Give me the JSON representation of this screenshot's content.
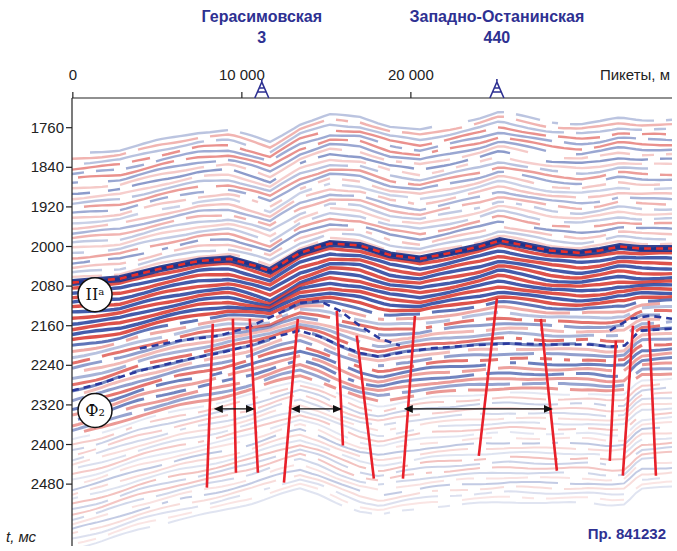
{
  "chart_data": {
    "type": "seismic_section",
    "x_label": "Пикеты, м",
    "y_label": "t, мс",
    "profile": "Пр. 841232",
    "xlim": [
      -50,
      35450
    ],
    "ylim": [
      1700,
      2605
    ],
    "xticks": [
      0,
      {
        "value": 10000,
        "label": "10 000"
      },
      {
        "value": 20000,
        "label": "20 000"
      }
    ],
    "yticks": [
      1760,
      1840,
      1920,
      2000,
      2080,
      2160,
      2240,
      2320,
      2400,
      2480
    ],
    "wells": [
      {
        "name": "Герасимовская",
        "number": "3",
        "x": 11180
      },
      {
        "name": "Западно-Останинская",
        "number": "440",
        "x": 25090
      }
    ],
    "series": [
      {
        "name": "IIᵃ",
        "color": "#e8302a",
        "line_style": "dashed",
        "x": [
          -50,
          2780,
          5150,
          7510,
          9290,
          10770,
          11660,
          13430,
          15210,
          16980,
          18760,
          20530,
          22310,
          24080,
          25270,
          26450,
          28220,
          30000,
          31180,
          32370,
          33550,
          35450
        ],
        "values": [
          2073,
          2065,
          2045,
          2029,
          2025,
          2039,
          2049,
          2013,
          1994,
          1998,
          2017,
          2025,
          2013,
          2000,
          1988,
          1996,
          2008,
          2013,
          2008,
          2000,
          2004,
          2004
        ]
      },
      {
        "name": "Ф₂",
        "color": "#2b3a9e",
        "line_style": "dashed",
        "x": [
          -50,
          1600,
          3960,
          6330,
          8700,
          10470,
          12250,
          13430,
          14610,
          15800,
          16980,
          18170,
          19350,
          21120,
          23490,
          25860,
          28220,
          30590,
          31770,
          32660,
          33550,
          35450
        ],
        "values": [
          2291,
          2277,
          2251,
          2231,
          2215,
          2200,
          2180,
          2170,
          2182,
          2200,
          2215,
          2223,
          2215,
          2206,
          2200,
          2196,
          2198,
          2198,
          2202,
          2200,
          2170,
          2166
        ]
      },
      {
        "color": "#2b3a9e",
        "line_style": "dashed",
        "x": [
          3960,
          6330,
          8700,
          10470,
          12250,
          13430,
          14610,
          15800,
          16980,
          18170,
          19350,
          25000,
          31770,
          32960,
          34140,
          35450
        ],
        "values": [
          2206,
          2190,
          2180,
          2162,
          2134,
          2114,
          2110,
          2130,
          2160,
          2186,
          2200,
          null,
          2170,
          2146,
          2140,
          2146
        ]
      }
    ],
    "faults": [
      {
        "x": [
          8280,
          7930
        ],
        "values": [
          2156,
          2487
        ]
      },
      {
        "x": [
          9470,
          9650
        ],
        "values": [
          2146,
          2457
        ]
      },
      {
        "x": [
          10470,
          10950
        ],
        "values": [
          2146,
          2457
        ]
      },
      {
        "x": [
          13310,
          12490
        ],
        "values": [
          2146,
          2477
        ]
      },
      {
        "x": [
          15620,
          15980
        ],
        "values": [
          2130,
          2402
        ]
      },
      {
        "x": [
          16800,
          17810
        ],
        "values": [
          2180,
          2469
        ]
      },
      {
        "x": [
          20240,
          19530
        ],
        "values": [
          2140,
          2469
        ]
      },
      {
        "x": [
          25090,
          24020
        ],
        "values": [
          2105,
          2423
        ]
      },
      {
        "x": [
          27690,
          28640
        ],
        "values": [
          2146,
          2453
        ]
      },
      {
        "x": [
          32130,
          31770
        ],
        "values": [
          2190,
          2433
        ]
      },
      {
        "x": [
          33140,
          32540
        ],
        "values": [
          2160,
          2463
        ]
      },
      {
        "x": [
          34080,
          34500
        ],
        "values": [
          2150,
          2463
        ]
      }
    ],
    "ranges": [
      {
        "x": [
          8400,
          10770
        ],
        "t": 2328
      },
      {
        "x": [
          12960,
          15920
        ],
        "t": 2328
      },
      {
        "x": [
          19640,
          28400
        ],
        "t": 2328
      }
    ]
  }
}
